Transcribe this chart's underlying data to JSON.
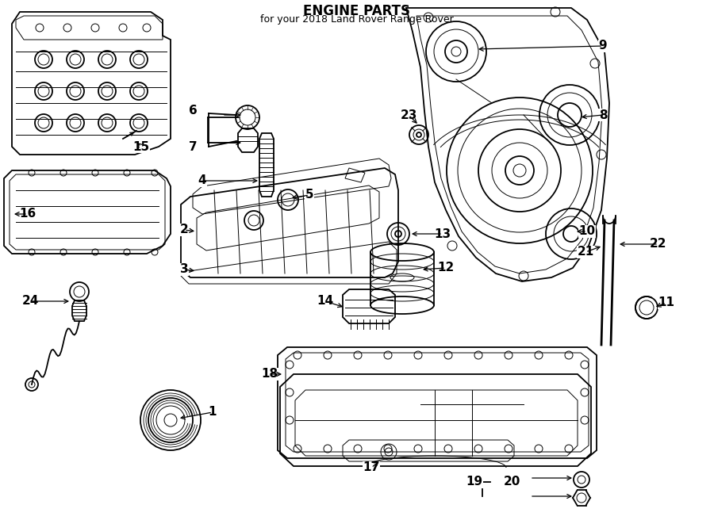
{
  "title": "ENGINE PARTS",
  "subtitle": "for your 2018 Land Rover Range Rover",
  "bg_color": "#ffffff",
  "line_color": "#000000",
  "figsize": [
    9.0,
    6.61
  ],
  "dpi": 100,
  "lw_main": 1.3,
  "lw_thin": 0.7,
  "lw_thick": 2.0,
  "font_size_label": 11,
  "font_size_title": 12,
  "font_size_sub": 9
}
